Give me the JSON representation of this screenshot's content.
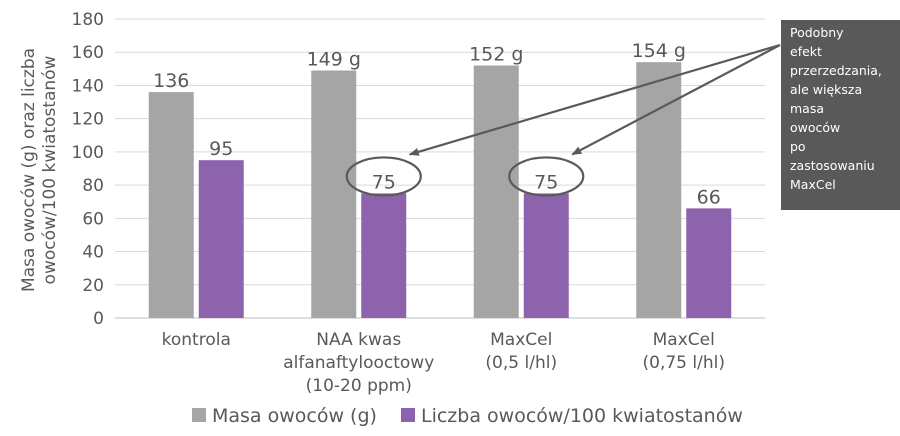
{
  "chart_data": {
    "type": "bar",
    "ylabel_lines": [
      "Masa owoców (g) oraz liczba",
      "owoców/100 kwiatostanów"
    ],
    "ylim": [
      0,
      180
    ],
    "yticks": [
      "0",
      "20",
      "40",
      "60",
      "80",
      "100",
      "120",
      "140",
      "160",
      "180"
    ],
    "grid": true,
    "legend_position": "bottom",
    "categories": [
      {
        "lines": [
          "kontrola"
        ]
      },
      {
        "lines": [
          "NAA kwas",
          "alfanaftylooctowy",
          "(10-20 ppm)"
        ]
      },
      {
        "lines": [
          "MaxCel",
          "(0,5 l/hl)"
        ]
      },
      {
        "lines": [
          "MaxCel",
          "(0,75 l/hl)"
        ]
      }
    ],
    "series": [
      {
        "name": "Masa owoców (g)",
        "color": "#a5a5a5",
        "values": [
          136,
          149,
          152,
          154
        ],
        "labels": [
          "136",
          "149 g",
          "152 g",
          "154 g"
        ]
      },
      {
        "name": "Liczba owoców/100 kwiatostanów",
        "color": "#8e63ad",
        "values": [
          95,
          75,
          75,
          66
        ],
        "labels": [
          "95",
          "75",
          "75",
          "66"
        ]
      }
    ],
    "annotation": {
      "text_lines": [
        "Podobny",
        "efekt",
        "przerzedzania,",
        "ale większa",
        "masa",
        "owoców",
        "po",
        "zastosowaniu",
        "MaxCel"
      ],
      "box_color": "#595959",
      "highlighted": [
        {
          "category_index": 1,
          "series_index": 1
        },
        {
          "category_index": 2,
          "series_index": 1
        }
      ]
    }
  }
}
